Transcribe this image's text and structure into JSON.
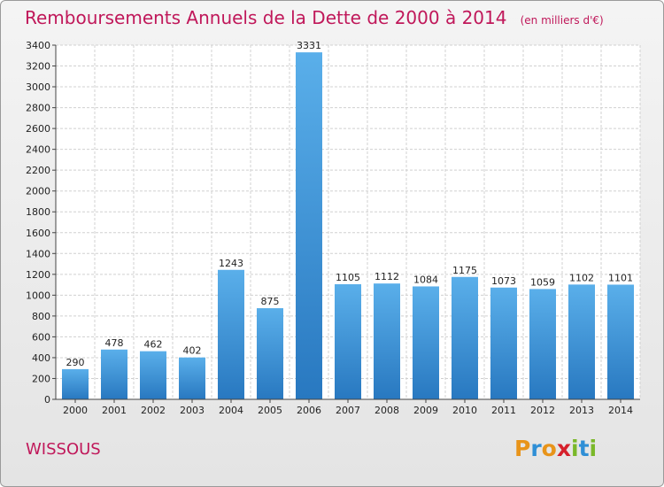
{
  "header": {
    "title": "Remboursements Annuels de la Dette de 2000 à 2014",
    "unit": "(en milliers d'€)"
  },
  "footer": {
    "commune": "WISSOUS",
    "logo_letters": [
      "P",
      "r",
      "o",
      "x",
      "i",
      "t",
      "i"
    ],
    "logo_colors": [
      "#e8941a",
      "#2f8fd6",
      "#e8941a",
      "#d6202b",
      "#7ab829",
      "#2f8fd6",
      "#7ab829"
    ]
  },
  "chart_data": {
    "type": "bar",
    "categories": [
      "2000",
      "2001",
      "2002",
      "2003",
      "2004",
      "2005",
      "2006",
      "2007",
      "2008",
      "2009",
      "2010",
      "2011",
      "2012",
      "2013",
      "2014"
    ],
    "values": [
      290,
      478,
      462,
      402,
      1243,
      875,
      3331,
      1105,
      1112,
      1084,
      1175,
      1073,
      1059,
      1102,
      1101
    ],
    "data_labels": [
      "290",
      "478",
      "462",
      "402",
      "1243",
      "875",
      "3331",
      "1105",
      "1112",
      "1084",
      "1175",
      "1073",
      "1059",
      "1102",
      "1101"
    ],
    "ylim": [
      0,
      3400
    ],
    "yticks": [
      0,
      200,
      400,
      600,
      800,
      1000,
      1200,
      1400,
      1600,
      1800,
      2000,
      2200,
      2400,
      2600,
      2800,
      3000,
      3200,
      3400
    ],
    "ytick_labels": [
      "0",
      "200",
      "400",
      "600",
      "800",
      "1000",
      "1200",
      "1400",
      "1600",
      "1800",
      "2000",
      "2200",
      "2400",
      "2600",
      "2800",
      "3000",
      "3200",
      "3400"
    ],
    "grid": true,
    "bar_color": "#4a9fe0",
    "title": "Remboursements Annuels de la Dette de 2000 à 2014",
    "xlabel": "",
    "ylabel": ""
  }
}
